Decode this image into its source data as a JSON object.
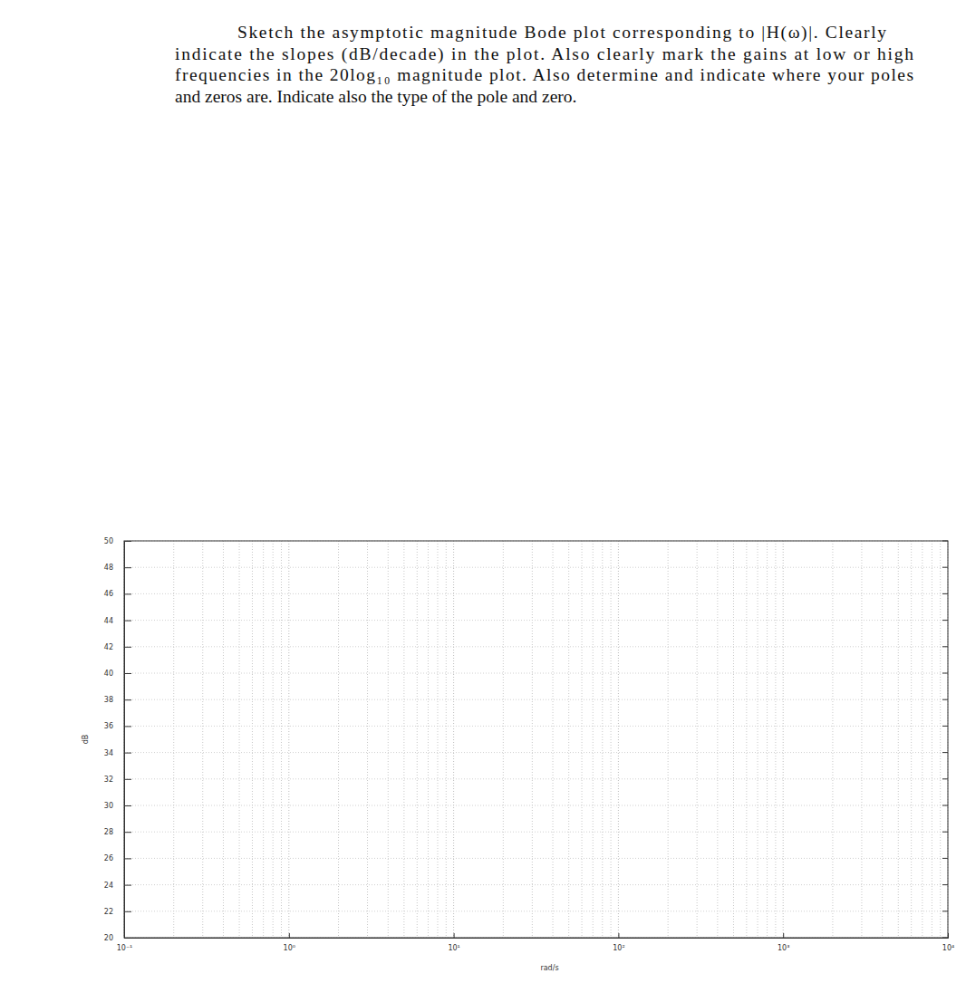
{
  "chart_data": {
    "type": "line",
    "title": [
      "Sketch the asymptotic magnitude Bode plot corresponding to |H(ω)|. Clearly",
      "indicate the slopes (dB/decade) in the plot. Also clearly mark the gains at low or high",
      "frequencies in the 20log₁₀ magnitude plot. Also determine and indicate where your poles",
      "and zeros are. Indicate also the type of the pole and zero."
    ],
    "x_label": "rad/s",
    "y_label": "dB",
    "series": [],
    "log": "x",
    "grid": true,
    "xlim": [
      0.1,
      10000
    ],
    "xticks": [
      {
        "value": 0.1,
        "label": "10⁻¹"
      },
      {
        "value": 1,
        "label": "10⁰"
      },
      {
        "value": 10,
        "label": "10¹"
      },
      {
        "value": 100,
        "label": "10²"
      },
      {
        "value": 1000,
        "label": "10³"
      },
      {
        "value": 10000,
        "label": "10⁴"
      }
    ],
    "x_minor_ticks": [
      0.2,
      0.3,
      0.4,
      0.5,
      0.6,
      0.7,
      0.8,
      0.9,
      2,
      3,
      4,
      5,
      6,
      7,
      8,
      9,
      20,
      30,
      40,
      50,
      60,
      70,
      80,
      90,
      200,
      300,
      400,
      500,
      600,
      700,
      800,
      900,
      2000,
      3000,
      4000,
      5000,
      6000,
      7000,
      8000,
      9000
    ],
    "ylim": [
      20,
      50
    ],
    "yticks": [
      20,
      22,
      24,
      26,
      28,
      30,
      32,
      34,
      36,
      38,
      40,
      42,
      44,
      46,
      48,
      50
    ]
  }
}
